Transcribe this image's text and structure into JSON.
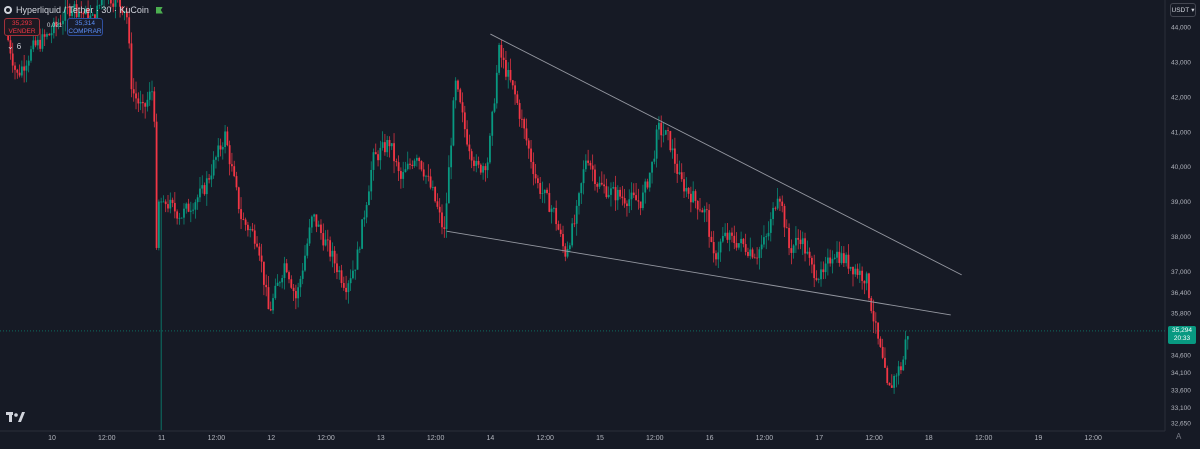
{
  "header": {
    "symbol": "Hyperliquid / Tether · 30 · KuCoin",
    "sell_price": "35,293",
    "sell_label": "VENDER",
    "buy_price": "35,314",
    "buy_label": "COMPRAR",
    "spread": "0.021",
    "collapse_count": "6",
    "currency": "USDT"
  },
  "price_badge": {
    "price": "35,294",
    "countdown": "20:33"
  },
  "colors": {
    "up": "#089981",
    "down": "#f23645",
    "background": "#161a25"
  },
  "chart_data": {
    "type": "candlestick",
    "interval": "30",
    "x_tick_labels": [
      "10",
      "12:00",
      "11",
      "12:00",
      "12",
      "12:00",
      "13",
      "12:00",
      "14",
      "12:00",
      "15",
      "12:00",
      "16",
      "12:00",
      "17",
      "12:00",
      "18",
      "12:00",
      "19",
      "12:00"
    ],
    "y_tick_labels": [
      "44,000",
      "43,000",
      "42,000",
      "41,000",
      "40,000",
      "39,000",
      "38,000",
      "37,000",
      "36,400",
      "35,800",
      "34,600",
      "34,100",
      "33,600",
      "33,100",
      "32,650"
    ],
    "ylim": [
      32.4,
      44.3
    ],
    "last_price": 35.294,
    "trendlines": [
      {
        "name": "upper",
        "from": {
          "day": 14.0,
          "price": 43.8
        },
        "to": {
          "day": 18.3,
          "price": 36.9
        }
      },
      {
        "name": "lower",
        "from": {
          "day": 13.6,
          "price": 38.15
        },
        "to": {
          "day": 18.2,
          "price": 35.75
        }
      }
    ],
    "price_path": [
      [
        9.6,
        43.9
      ],
      [
        9.7,
        42.6
      ],
      [
        9.85,
        43.4
      ],
      [
        10.0,
        43.8
      ],
      [
        10.2,
        44.6
      ],
      [
        10.4,
        44.2
      ],
      [
        10.5,
        45.0
      ],
      [
        10.7,
        44.5
      ],
      [
        10.75,
        42.2
      ],
      [
        10.85,
        41.6
      ],
      [
        10.95,
        42.3
      ],
      [
        11.0,
        32.6
      ],
      [
        11.05,
        39.0
      ],
      [
        11.2,
        38.6
      ],
      [
        11.4,
        39.3
      ],
      [
        11.6,
        40.9
      ],
      [
        11.75,
        38.5
      ],
      [
        11.9,
        37.9
      ],
      [
        12.0,
        35.8
      ],
      [
        12.15,
        37.3
      ],
      [
        12.25,
        36.2
      ],
      [
        12.4,
        38.6
      ],
      [
        12.55,
        37.6
      ],
      [
        12.7,
        36.6
      ],
      [
        12.8,
        37.3
      ],
      [
        12.95,
        40.2
      ],
      [
        13.1,
        40.7
      ],
      [
        13.2,
        39.6
      ],
      [
        13.35,
        40.4
      ],
      [
        13.5,
        39.2
      ],
      [
        13.6,
        38.1
      ],
      [
        13.7,
        42.4
      ],
      [
        13.8,
        40.9
      ],
      [
        13.9,
        39.9
      ],
      [
        14.0,
        40.2
      ],
      [
        14.1,
        43.3
      ],
      [
        14.25,
        42.0
      ],
      [
        14.45,
        39.5
      ],
      [
        14.6,
        38.7
      ],
      [
        14.7,
        37.5
      ],
      [
        14.8,
        38.5
      ],
      [
        14.9,
        40.4
      ],
      [
        15.0,
        39.5
      ],
      [
        15.1,
        39.3
      ],
      [
        15.25,
        39.1
      ],
      [
        15.4,
        39.0
      ],
      [
        15.5,
        40.1
      ],
      [
        15.55,
        41.1
      ],
      [
        15.65,
        40.8
      ],
      [
        15.75,
        39.6
      ],
      [
        15.9,
        39.0
      ],
      [
        16.0,
        38.6
      ],
      [
        16.05,
        37.3
      ],
      [
        16.15,
        38.0
      ],
      [
        16.3,
        37.8
      ],
      [
        16.45,
        37.5
      ],
      [
        16.55,
        38.0
      ],
      [
        16.65,
        39.4
      ],
      [
        16.75,
        37.6
      ],
      [
        16.85,
        38.0
      ],
      [
        16.95,
        37.1
      ],
      [
        17.05,
        36.8
      ],
      [
        17.15,
        37.6
      ],
      [
        17.3,
        37.2
      ],
      [
        17.45,
        36.8
      ],
      [
        17.55,
        35.1
      ],
      [
        17.6,
        34.4
      ],
      [
        17.65,
        33.5
      ],
      [
        17.72,
        34.1
      ],
      [
        17.78,
        34.3
      ],
      [
        17.82,
        35.25
      ]
    ]
  }
}
